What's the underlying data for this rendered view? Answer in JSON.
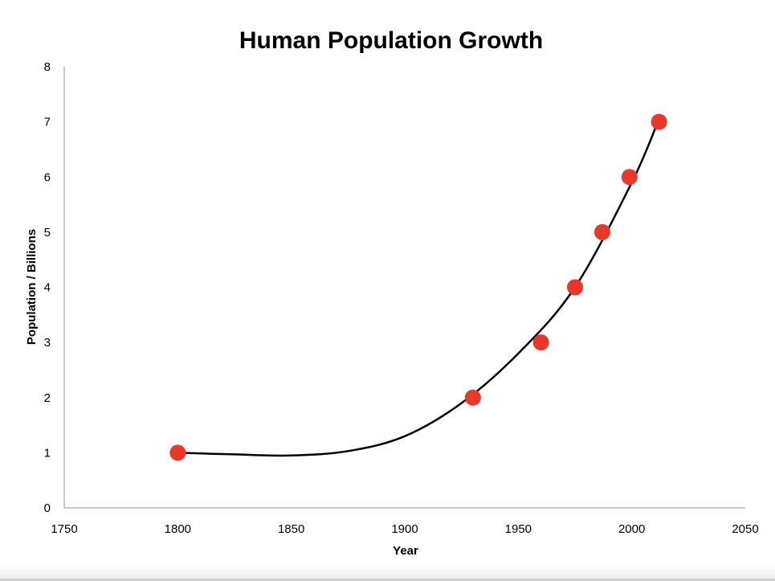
{
  "chart_data": {
    "type": "scatter",
    "title": "Human Population Growth",
    "xlabel": "Year",
    "ylabel": "Population / Billions",
    "xlim": [
      1750,
      2050
    ],
    "ylim": [
      0,
      8
    ],
    "x_ticks": [
      1750,
      1800,
      1850,
      1900,
      1950,
      2000,
      2050
    ],
    "y_ticks": [
      0,
      1,
      2,
      3,
      4,
      5,
      6,
      7,
      8
    ],
    "grid": false,
    "legend": "none",
    "series": [
      {
        "points": [
          {
            "x": 1800,
            "y": 1
          },
          {
            "x": 1930,
            "y": 2
          },
          {
            "x": 1960,
            "y": 3
          },
          {
            "x": 1975,
            "y": 4
          },
          {
            "x": 1987,
            "y": 5
          },
          {
            "x": 1999,
            "y": 6
          },
          {
            "x": 2012,
            "y": 7
          }
        ],
        "marker_color": "#e8382a"
      }
    ],
    "trendline": {
      "color": "#000000",
      "x_range": [
        1800,
        2012
      ],
      "points": [
        {
          "x": 1800,
          "y": 1.0
        },
        {
          "x": 1825,
          "y": 0.97
        },
        {
          "x": 1850,
          "y": 0.95
        },
        {
          "x": 1875,
          "y": 1.03
        },
        {
          "x": 1900,
          "y": 1.3
        },
        {
          "x": 1925,
          "y": 1.9
        },
        {
          "x": 1950,
          "y": 2.8
        },
        {
          "x": 1975,
          "y": 4.0
        },
        {
          "x": 2000,
          "y": 5.9
        },
        {
          "x": 2012,
          "y": 7.05
        }
      ]
    }
  }
}
